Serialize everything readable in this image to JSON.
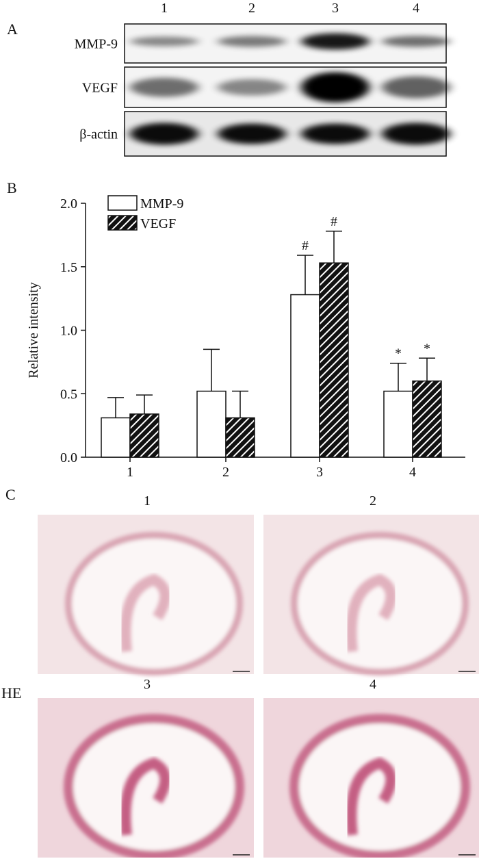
{
  "panels": {
    "a": "A",
    "b": "B",
    "c": "C",
    "he": "HE"
  },
  "blot": {
    "lanes": [
      "1",
      "2",
      "3",
      "4"
    ],
    "rows": [
      "MMP-9",
      "VEGF",
      "β-actin"
    ]
  },
  "histology": {
    "titles": [
      "1",
      "2",
      "3",
      "4"
    ]
  },
  "chart_data": {
    "type": "bar",
    "ylabel": "Relative intensity",
    "categories": [
      "1",
      "2",
      "3",
      "4"
    ],
    "series": [
      {
        "name": "MMP-9",
        "color": "#ffffff",
        "hatch": false,
        "values": [
          0.31,
          0.52,
          1.28,
          0.52
        ],
        "errors": [
          0.16,
          0.33,
          0.31,
          0.22
        ],
        "markers": [
          null,
          null,
          "#",
          "*"
        ]
      },
      {
        "name": "VEGF",
        "color": "#111111",
        "hatch": true,
        "values": [
          0.34,
          0.31,
          1.53,
          0.6
        ],
        "errors": [
          0.15,
          0.21,
          0.25,
          0.18
        ],
        "markers": [
          null,
          null,
          "#",
          "*"
        ]
      }
    ],
    "ylim": [
      0,
      2.0
    ],
    "yticks": [
      {
        "value": 0,
        "label": "0.0"
      },
      {
        "value": 0.5,
        "label": "0.5"
      },
      {
        "value": 1.0,
        "label": "1.0"
      },
      {
        "value": 1.5,
        "label": "1.5"
      },
      {
        "value": 2.0,
        "label": "2.0"
      }
    ],
    "legend": "upper left"
  }
}
